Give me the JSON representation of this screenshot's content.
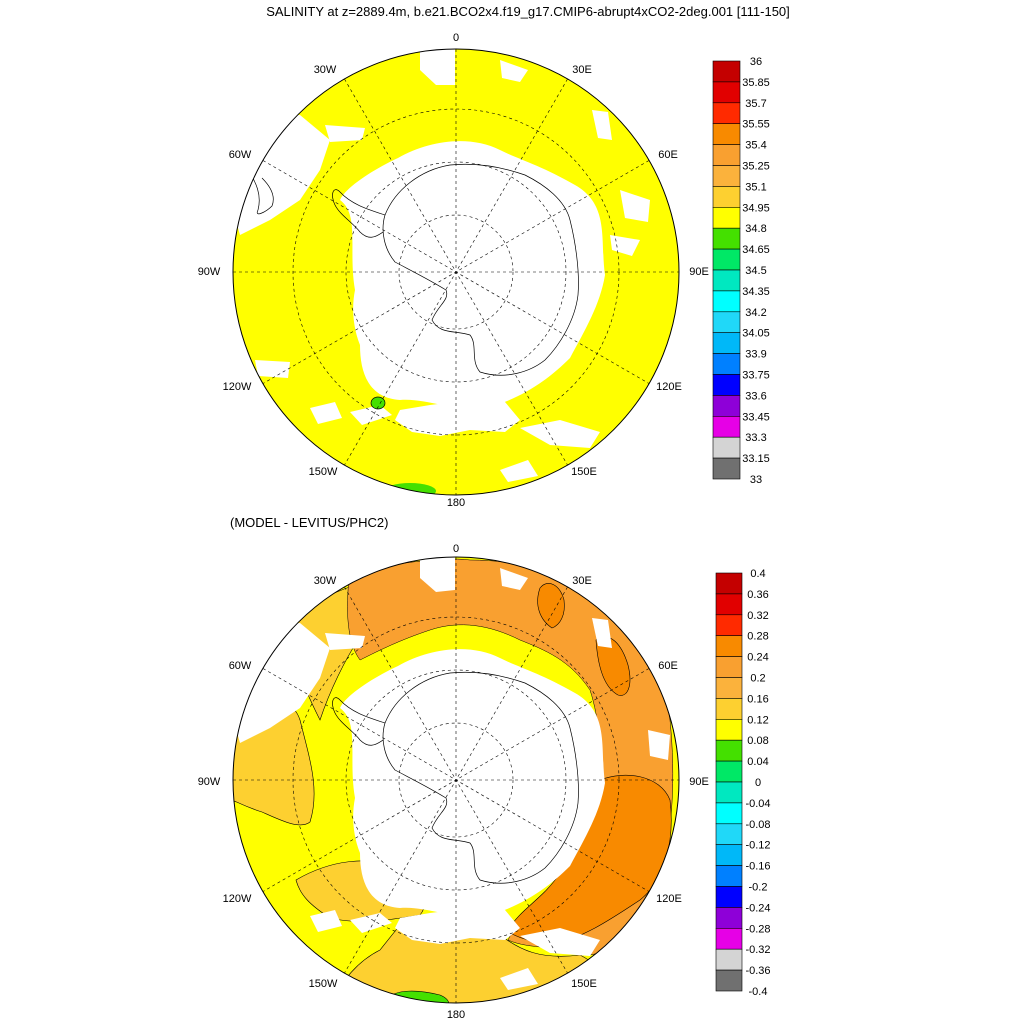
{
  "chart_data": [
    {
      "type": "heatmap",
      "projection": "south polar stereographic",
      "title": "SALINITY at z=2889.4m, b.e21.BCO2x4.f19_g17.CMIP6-abrupt4xCO2-2deg.001 [111-150]",
      "field": "salinity",
      "depth_m": 2889.4,
      "years": "111-150",
      "longitude_labels": [
        "0",
        "30E",
        "60E",
        "90E",
        "120E",
        "150E",
        "180",
        "150W",
        "120W",
        "90W",
        "60W",
        "30W"
      ],
      "colorbar": {
        "levels": [
          "36",
          "35.85",
          "35.7",
          "35.55",
          "35.4",
          "35.25",
          "35.1",
          "34.95",
          "34.8",
          "34.65",
          "34.5",
          "34.35",
          "34.2",
          "34.05",
          "33.9",
          "33.75",
          "33.6",
          "33.45",
          "33.3",
          "33.15",
          "33"
        ],
        "colors": [
          "#c40000",
          "#e10000",
          "#ff2a00",
          "#f88a00",
          "#f9a030",
          "#fbb23c",
          "#fdd030",
          "#ffff00",
          "#44e000",
          "#00e866",
          "#00e8c0",
          "#00ffff",
          "#20d8f8",
          "#00b8f8",
          "#0080ff",
          "#0000ff",
          "#8e00d8",
          "#e600e6",
          "#d4d4d4",
          "#707070"
        ]
      },
      "ocean_value_range": [
        34.95,
        35.1
      ],
      "ocean_fill": "#ffff00",
      "minor_regions": [
        {
          "location": "near 135W",
          "range": [
            34.8,
            34.95
          ],
          "color": "#44e000"
        },
        {
          "location": "near 180 rim",
          "range": [
            34.8,
            34.95
          ],
          "color": "#44e000"
        }
      ]
    },
    {
      "type": "heatmap",
      "projection": "south polar stereographic",
      "title": "(MODEL - LEVITUS/PHC2)",
      "field": "salinity difference",
      "longitude_labels": [
        "0",
        "30E",
        "60E",
        "90E",
        "120E",
        "150E",
        "180",
        "150W",
        "120W",
        "90W",
        "60W",
        "30W"
      ],
      "colorbar": {
        "levels": [
          "0.4",
          "0.36",
          "0.32",
          "0.28",
          "0.24",
          "0.2",
          "0.16",
          "0.12",
          "0.08",
          "0.04",
          "0",
          "-0.04",
          "-0.08",
          "-0.12",
          "-0.16",
          "-0.2",
          "-0.24",
          "-0.28",
          "-0.32",
          "-0.36",
          "-0.4"
        ],
        "colors": [
          "#c40000",
          "#e10000",
          "#ff2a00",
          "#f88a00",
          "#f9a030",
          "#fbb23c",
          "#fdd030",
          "#ffff00",
          "#44e000",
          "#00e866",
          "#00e8c0",
          "#00ffff",
          "#20d8f8",
          "#00b8f8",
          "#0080ff",
          "#0000ff",
          "#8e00d8",
          "#e600e6",
          "#d4d4d4",
          "#707070"
        ]
      },
      "regions": [
        {
          "location": "Atlantic and Indian sectors (30W-90E)",
          "range": [
            0.2,
            0.24
          ],
          "color": "#f9a030"
        },
        {
          "location": "30E and 60E patches",
          "range": [
            0.24,
            0.28
          ],
          "color": "#f88a00"
        },
        {
          "location": "Pacific sector (90W-150W)",
          "range": [
            0.12,
            0.16
          ],
          "color": "#ffff00"
        },
        {
          "location": "around 90W-120W west",
          "range": [
            0.16,
            0.2
          ],
          "color": "#fdd030"
        },
        {
          "location": "near 180 rim",
          "range": [
            0.08,
            0.12
          ],
          "color": "#44e000"
        }
      ]
    }
  ]
}
